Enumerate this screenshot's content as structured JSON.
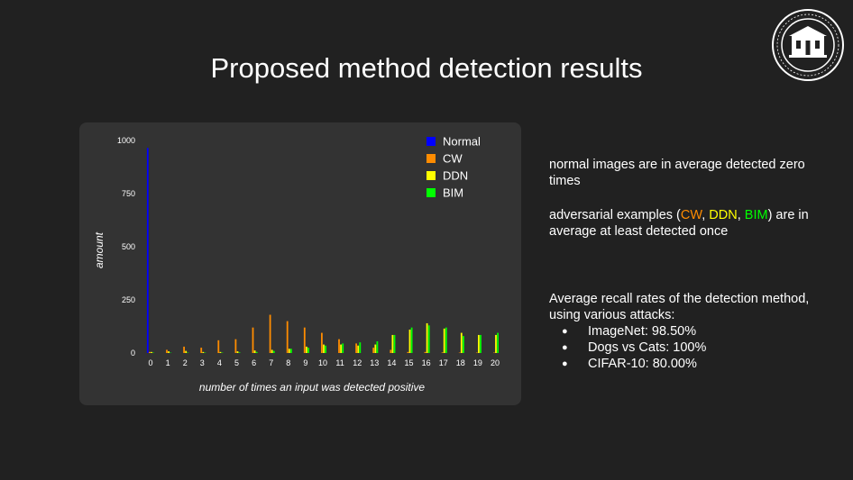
{
  "slide": {
    "title": "Proposed method detection results"
  },
  "text": {
    "para1": "normal images are in average detected zero times",
    "para2": {
      "before": "adversarial examples (",
      "cw": "CW",
      "sep1": ", ",
      "ddn": "DDN",
      "sep2": ", ",
      "bim": "BIM",
      "after": ") are in average at least detected once"
    },
    "para3": "Average recall rates of the detection method, using various attacks:",
    "bullets": [
      "ImageNet: 98.50%",
      "Dogs vs Cats: 100%",
      "CIFAR-10: 80.00%"
    ]
  },
  "chart_data": {
    "type": "bar",
    "title": "",
    "xlabel": "number of times an input was detected positive",
    "ylabel": "amount",
    "ylim": [
      0,
      1000
    ],
    "yticks": [
      0,
      250,
      500,
      750,
      1000
    ],
    "grid": false,
    "legend_position": "top-right",
    "categories": [
      "0",
      "1",
      "2",
      "3",
      "4",
      "5",
      "6",
      "7",
      "8",
      "9",
      "10",
      "11",
      "12",
      "13",
      "14",
      "15",
      "16",
      "17",
      "18",
      "19",
      "20"
    ],
    "series": [
      {
        "name": "Normal",
        "color": "#0000ff",
        "values": [
          965,
          0,
          0,
          0,
          0,
          0,
          0,
          0,
          0,
          0,
          0,
          0,
          0,
          0,
          0,
          0,
          0,
          0,
          0,
          0,
          0
        ]
      },
      {
        "name": "CW",
        "color": "#ff8c00",
        "values": [
          5,
          15,
          30,
          25,
          60,
          65,
          120,
          180,
          150,
          120,
          95,
          65,
          45,
          25,
          15,
          5,
          5,
          3,
          2,
          2,
          2
        ]
      },
      {
        "name": "DDN",
        "color": "#ffff00",
        "values": [
          5,
          8,
          10,
          5,
          5,
          8,
          12,
          15,
          20,
          30,
          40,
          40,
          35,
          40,
          85,
          110,
          140,
          115,
          95,
          85,
          85
        ]
      },
      {
        "name": "BIM",
        "color": "#00ff00",
        "values": [
          2,
          2,
          2,
          2,
          2,
          3,
          5,
          10,
          20,
          25,
          35,
          45,
          50,
          55,
          85,
          120,
          130,
          120,
          80,
          85,
          95
        ]
      }
    ]
  }
}
